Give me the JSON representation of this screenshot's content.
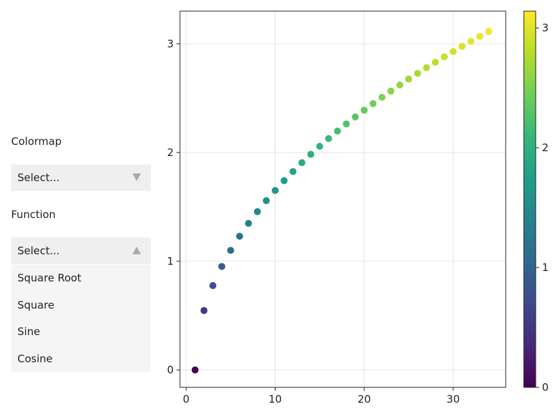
{
  "controls": {
    "colormap_label": "Colormap",
    "colormap_select": "Select...",
    "function_label": "Function",
    "function_select": "Select...",
    "function_options": [
      "Square Root",
      "Square",
      "Sine",
      "Cosine"
    ]
  },
  "chart_data": {
    "type": "scatter",
    "title": "",
    "xlabel": "",
    "ylabel": "",
    "x": [
      1,
      2,
      3,
      4,
      5,
      6,
      7,
      8,
      9,
      10,
      11,
      12,
      13,
      14,
      15,
      16,
      17,
      18,
      19,
      20,
      21,
      22,
      23,
      24,
      25,
      26,
      27,
      28,
      29,
      30,
      31,
      32,
      33,
      34
    ],
    "y": [
      0,
      0.547,
      0.776,
      0.952,
      1.1,
      1.23,
      1.348,
      1.456,
      1.557,
      1.651,
      1.741,
      1.825,
      1.906,
      1.983,
      2.057,
      2.128,
      2.197,
      2.263,
      2.327,
      2.389,
      2.45,
      2.508,
      2.565,
      2.621,
      2.675,
      2.728,
      2.78,
      2.83,
      2.88,
      2.928,
      2.976,
      3.022,
      3.068,
      3.113
    ],
    "color_values": [
      0,
      0.547,
      0.776,
      0.952,
      1.1,
      1.23,
      1.348,
      1.456,
      1.557,
      1.651,
      1.741,
      1.825,
      1.906,
      1.983,
      2.057,
      2.128,
      2.197,
      2.263,
      2.327,
      2.389,
      2.45,
      2.508,
      2.565,
      2.621,
      2.675,
      2.728,
      2.78,
      2.83,
      2.88,
      2.928,
      2.976,
      3.022,
      3.068,
      3.113
    ],
    "xlim": [
      -0.7,
      35.9
    ],
    "ylim": [
      -0.16,
      3.3
    ],
    "xticks": [
      0,
      10,
      20,
      30
    ],
    "yticks": [
      0,
      1,
      2,
      3
    ],
    "grid": true,
    "colorbar": {
      "colormap": "viridis",
      "range": [
        0,
        3.14
      ],
      "ticks": [
        0,
        1,
        2,
        3
      ],
      "colors": [
        "#440154",
        "#482878",
        "#3e4989",
        "#31688e",
        "#26828e",
        "#1f9e89",
        "#35b779",
        "#6ece58",
        "#b5de2b",
        "#fde725"
      ]
    }
  }
}
